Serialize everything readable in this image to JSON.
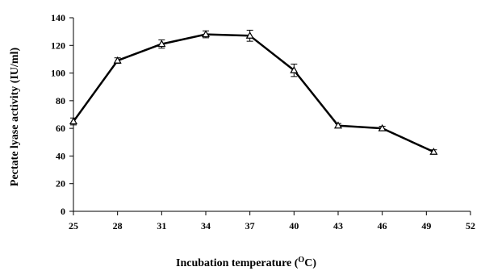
{
  "chart_data": {
    "type": "line",
    "title": "",
    "xlabel": "Incubation temperature (",
    "xlabel_sup": "O",
    "xlabel_end": "C)",
    "ylabel": "Pectate lyase activity (IU/ml)",
    "x_ticks": [
      25,
      28,
      31,
      34,
      37,
      40,
      43,
      46,
      49,
      52
    ],
    "y_ticks": [
      0,
      20,
      40,
      60,
      80,
      100,
      120,
      140
    ],
    "xlim": [
      25,
      52
    ],
    "ylim": [
      0,
      140
    ],
    "grid": false,
    "legend": "none",
    "marker": "triangle-open",
    "line_color": "#000000",
    "series": [
      {
        "x": [
          25,
          28,
          31,
          34,
          37,
          40,
          43,
          46,
          49.5
        ],
        "y": [
          65,
          109,
          121,
          128,
          127,
          102,
          62,
          60,
          43
        ],
        "error": [
          2.5,
          2,
          3,
          2.5,
          4,
          4.5,
          1.5,
          1.5,
          1.5
        ]
      }
    ]
  }
}
